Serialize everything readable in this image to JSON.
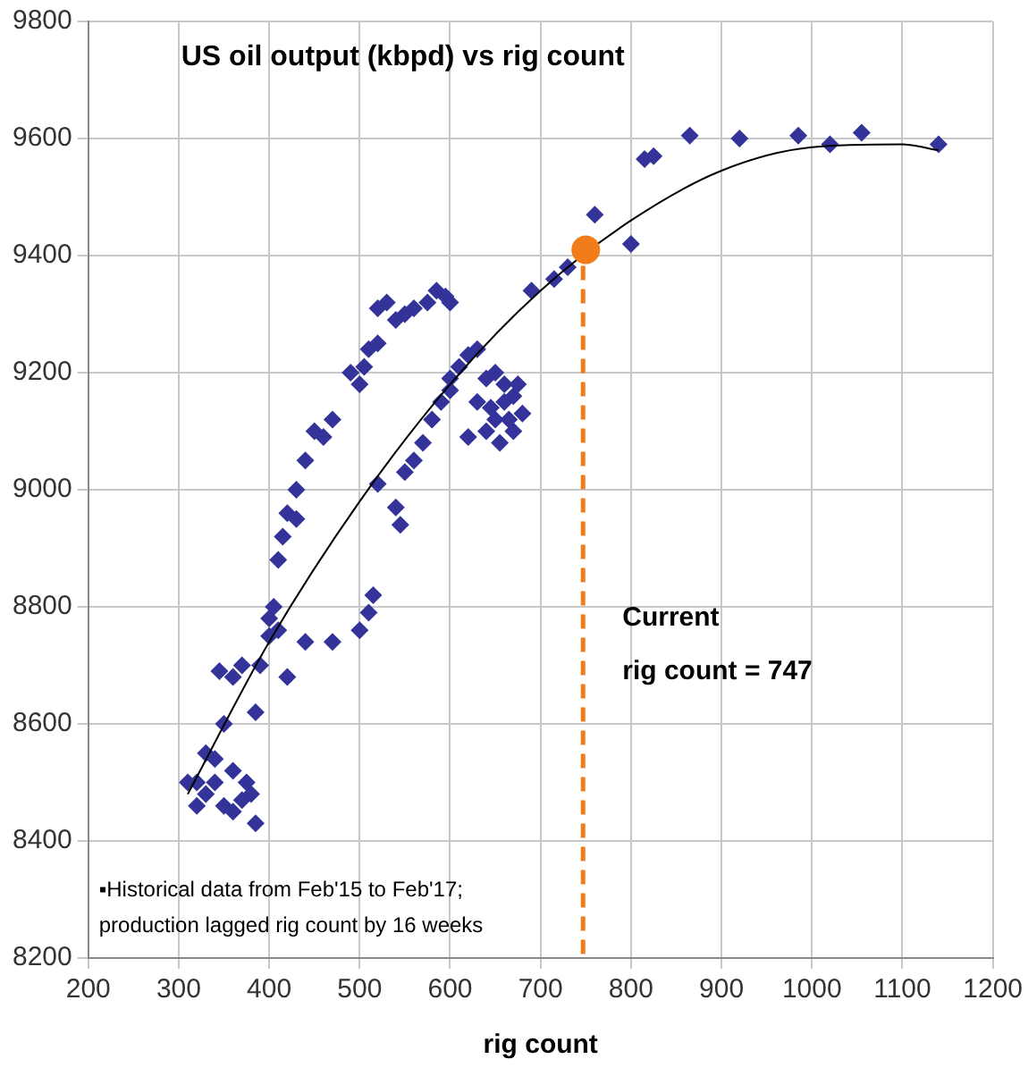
{
  "chart_data": {
    "type": "scatter",
    "title": "US oil output (kbpd) vs rig count",
    "xlabel": "rig count",
    "xlim": [
      200,
      1200
    ],
    "xticks": [
      200,
      300,
      400,
      500,
      600,
      700,
      800,
      900,
      1000,
      1100,
      1200
    ],
    "ylim": [
      8200,
      9800
    ],
    "yticks": [
      8200,
      8400,
      8600,
      8800,
      9000,
      9200,
      9400,
      9600,
      9800
    ],
    "grid": true,
    "legend": false,
    "marker": "diamond",
    "series": [
      {
        "color": "#333399",
        "x": [
          1140,
          1055,
          1020,
          985,
          920,
          865,
          825,
          815,
          800,
          760,
          730,
          715,
          690,
          520,
          530,
          550,
          560,
          575,
          585,
          595,
          600,
          540,
          510,
          505,
          490,
          520,
          500,
          470,
          460,
          450,
          440,
          430,
          420,
          415,
          410,
          430,
          310,
          320,
          330,
          340,
          350,
          360,
          370,
          385,
          380,
          320,
          340,
          350,
          345,
          360,
          370,
          390,
          385,
          400,
          400,
          405,
          410,
          420,
          440,
          470,
          330,
          360,
          375,
          500,
          510,
          515,
          520,
          540,
          545,
          550,
          560,
          570,
          580,
          590,
          600,
          610,
          620,
          630,
          600,
          640,
          650,
          660,
          670,
          640,
          655,
          665,
          650,
          660,
          620,
          630,
          670,
          645,
          675,
          680
        ],
        "values": [
          9590,
          9610,
          9590,
          9605,
          9600,
          9605,
          9570,
          9565,
          9420,
          9470,
          9380,
          9360,
          9340,
          9310,
          9320,
          9300,
          9310,
          9320,
          9340,
          9330,
          9320,
          9290,
          9240,
          9210,
          9200,
          9250,
          9180,
          9120,
          9090,
          9100,
          9050,
          9000,
          8960,
          8920,
          8880,
          8950,
          8500,
          8460,
          8480,
          8500,
          8460,
          8450,
          8470,
          8430,
          8480,
          8500,
          8540,
          8600,
          8690,
          8680,
          8700,
          8700,
          8620,
          8750,
          8780,
          8800,
          8760,
          8680,
          8740,
          8740,
          8550,
          8520,
          8500,
          8760,
          8790,
          8820,
          9010,
          8970,
          8940,
          9030,
          9050,
          9080,
          9120,
          9150,
          9190,
          9210,
          9230,
          9240,
          9170,
          9190,
          9120,
          9150,
          9160,
          9100,
          9080,
          9120,
          9200,
          9180,
          9090,
          9150,
          9100,
          9140,
          9180,
          9130
        ]
      },
      {
        "type": "line",
        "color": "#000000",
        "marker": "none",
        "x": [
          310,
          400,
          500,
          600,
          700,
          800,
          900,
          1000,
          1100,
          1140
        ],
        "values": [
          8480,
          8740,
          8980,
          9180,
          9340,
          9460,
          9545,
          9585,
          9590,
          9580
        ]
      },
      {
        "type": "scatter",
        "color": "#f07d1a",
        "marker": "circle",
        "x": [
          750
        ],
        "values": [
          9410
        ]
      }
    ],
    "ref_lines": [
      {
        "axis": "x",
        "value": 747,
        "label": "Current\nrig count = 747",
        "color": "#f07d1a",
        "line_style": "dashed"
      }
    ],
    "annotations": [
      "▪Historical data from Feb'15 to Feb'17;\nproduction lagged rig count by 16 weeks"
    ]
  }
}
